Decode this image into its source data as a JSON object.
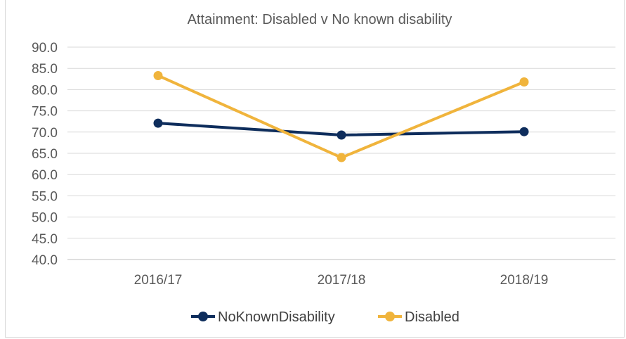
{
  "chart_data": {
    "type": "line",
    "title": "Attainment:  Disabled v No known disability",
    "xlabel": "",
    "ylabel": "",
    "categories": [
      "2016/17",
      "2017/18",
      "2018/19"
    ],
    "y_ticks": [
      "90.0",
      "85.0",
      "80.0",
      "75.0",
      "70.0",
      "65.0",
      "60.0",
      "55.0",
      "50.0",
      "45.0",
      "40.0"
    ],
    "ylim": [
      40,
      90
    ],
    "grid": true,
    "legend_position": "bottom",
    "series": [
      {
        "name": "NoKnownDisability",
        "color": "#0e2d5c",
        "values": [
          72.1,
          69.3,
          70.1
        ]
      },
      {
        "name": "Disabled",
        "color": "#f0b43c",
        "values": [
          83.3,
          64.0,
          81.8
        ]
      }
    ]
  }
}
